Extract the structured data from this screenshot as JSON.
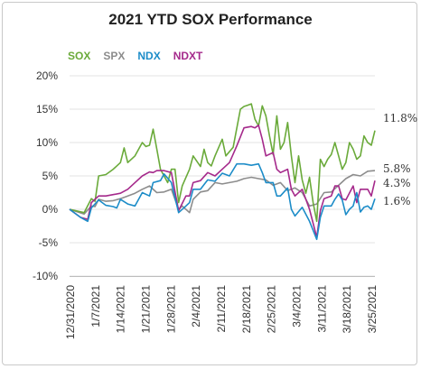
{
  "chart_data": {
    "type": "line",
    "title": "2021 YTD SOX Performance",
    "xlabel": "",
    "ylabel": "",
    "ylim": [
      -10,
      20
    ],
    "yticks": [
      -10,
      -5,
      0,
      5,
      10,
      15,
      20
    ],
    "ytick_labels": [
      "-10%",
      "-5%",
      "0%",
      "5%",
      "10%",
      "15%",
      "20%"
    ],
    "x_tick_labels": [
      "12/31/2020",
      "1/7/2021",
      "1/14/2021",
      "1/21/2021",
      "1/28/2021",
      "2/4/2021",
      "2/11/2021",
      "2/18/2021",
      "2/25/2021",
      "3/4/2021",
      "3/11/2021",
      "3/18/2021",
      "3/25/2021"
    ],
    "x_count": 85,
    "grid": "horizontal",
    "legend_position": "top-left",
    "series": [
      {
        "name": "SOX",
        "color": "#6aaa3a",
        "end_label": "11.8%",
        "points": [
          [
            0,
            0
          ],
          [
            4,
            -0.5
          ],
          [
            6,
            1.6
          ],
          [
            7,
            1.2
          ],
          [
            8,
            5
          ],
          [
            10,
            5.2
          ],
          [
            12,
            6
          ],
          [
            14,
            7
          ],
          [
            15,
            9.2
          ],
          [
            16,
            7
          ],
          [
            18,
            8
          ],
          [
            20,
            10
          ],
          [
            21,
            9.4
          ],
          [
            22,
            9.6
          ],
          [
            23,
            12
          ],
          [
            24,
            9
          ],
          [
            25,
            6
          ],
          [
            27,
            4
          ],
          [
            28,
            6
          ],
          [
            29,
            6
          ],
          [
            30,
            1
          ],
          [
            31,
            3.5
          ],
          [
            33,
            6
          ],
          [
            34,
            8
          ],
          [
            36,
            6.4
          ],
          [
            37,
            9
          ],
          [
            38,
            7
          ],
          [
            39,
            6.5
          ],
          [
            40,
            8
          ],
          [
            42,
            10.5
          ],
          [
            43,
            8
          ],
          [
            45,
            9.3
          ],
          [
            47,
            15
          ],
          [
            48,
            15.4
          ],
          [
            49,
            15.6
          ],
          [
            50,
            15.8
          ],
          [
            51,
            13.5
          ],
          [
            52,
            12.5
          ],
          [
            53,
            15.5
          ],
          [
            54,
            14
          ],
          [
            55,
            11
          ],
          [
            56,
            8.2
          ],
          [
            57,
            14
          ],
          [
            58,
            9
          ],
          [
            59,
            10
          ],
          [
            60,
            13
          ],
          [
            61,
            8
          ],
          [
            62,
            4
          ],
          [
            63,
            8
          ],
          [
            64,
            4.4
          ],
          [
            65,
            2.4
          ],
          [
            66,
            4.8
          ],
          [
            67,
            1
          ],
          [
            68,
            -1.8
          ],
          [
            69,
            7.5
          ],
          [
            70,
            6.4
          ],
          [
            71,
            7.5
          ],
          [
            72,
            8.2
          ],
          [
            73,
            10
          ],
          [
            74,
            8
          ],
          [
            75,
            6
          ],
          [
            76,
            7
          ],
          [
            77,
            10
          ],
          [
            78,
            9
          ],
          [
            79,
            7.5
          ],
          [
            80,
            8
          ],
          [
            81,
            11
          ],
          [
            82,
            10
          ],
          [
            83,
            9.6
          ],
          [
            84,
            11.8
          ]
        ]
      },
      {
        "name": "SPX",
        "color": "#8c8c8c",
        "end_label": "5.8%",
        "points": [
          [
            0,
            0
          ],
          [
            4,
            -0.7
          ],
          [
            6,
            0.5
          ],
          [
            7,
            0.4
          ],
          [
            8,
            1.5
          ],
          [
            10,
            1.2
          ],
          [
            12,
            1.3
          ],
          [
            14,
            1.6
          ],
          [
            16,
            2
          ],
          [
            18,
            2.4
          ],
          [
            20,
            3
          ],
          [
            22,
            3.5
          ],
          [
            24,
            2.5
          ],
          [
            26,
            2.6
          ],
          [
            28,
            3
          ],
          [
            30,
            0
          ],
          [
            31,
            0.5
          ],
          [
            33,
            -0.5
          ],
          [
            34,
            1.5
          ],
          [
            36,
            2.6
          ],
          [
            38,
            2.8
          ],
          [
            40,
            4
          ],
          [
            42,
            3.8
          ],
          [
            44,
            4
          ],
          [
            46,
            4.2
          ],
          [
            48,
            4.6
          ],
          [
            50,
            4.8
          ],
          [
            52,
            4.6
          ],
          [
            54,
            4.4
          ],
          [
            56,
            3.6
          ],
          [
            58,
            4
          ],
          [
            60,
            2.8
          ],
          [
            62,
            3.2
          ],
          [
            64,
            2.5
          ],
          [
            66,
            0.5
          ],
          [
            68,
            0.8
          ],
          [
            70,
            2.5
          ],
          [
            72,
            2.6
          ],
          [
            74,
            3.6
          ],
          [
            76,
            4.6
          ],
          [
            78,
            5.2
          ],
          [
            80,
            5
          ],
          [
            82,
            5.7
          ],
          [
            84,
            5.8
          ]
        ]
      },
      {
        "name": "NDX",
        "color": "#1c8cc8",
        "end_label": "1.6%",
        "points": [
          [
            0,
            0
          ],
          [
            3,
            -1.2
          ],
          [
            5,
            -1.8
          ],
          [
            6,
            0.2
          ],
          [
            8,
            1.4
          ],
          [
            10,
            0.6
          ],
          [
            12,
            0.4
          ],
          [
            13,
            0.2
          ],
          [
            14,
            1.5
          ],
          [
            16,
            0.8
          ],
          [
            18,
            0.5
          ],
          [
            20,
            2.5
          ],
          [
            22,
            2
          ],
          [
            23,
            4
          ],
          [
            25,
            4.3
          ],
          [
            26,
            5.3
          ],
          [
            28,
            4
          ],
          [
            30,
            -0.5
          ],
          [
            32,
            0.5
          ],
          [
            33,
            1
          ],
          [
            34,
            3
          ],
          [
            36,
            3
          ],
          [
            38,
            4.4
          ],
          [
            40,
            4.2
          ],
          [
            42,
            5.4
          ],
          [
            44,
            5
          ],
          [
            46,
            6.8
          ],
          [
            48,
            6.8
          ],
          [
            50,
            6.6
          ],
          [
            52,
            6.8
          ],
          [
            53,
            5.5
          ],
          [
            54,
            4
          ],
          [
            56,
            4
          ],
          [
            57,
            2
          ],
          [
            58,
            2
          ],
          [
            60,
            3.2
          ],
          [
            61,
            0
          ],
          [
            62,
            -1
          ],
          [
            64,
            0.3
          ],
          [
            66,
            -1.8
          ],
          [
            68,
            -4.5
          ],
          [
            69,
            -1.2
          ],
          [
            70,
            0.5
          ],
          [
            72,
            0.5
          ],
          [
            73,
            1.5
          ],
          [
            74,
            2.3
          ],
          [
            75,
            1.4
          ],
          [
            76,
            -0.8
          ],
          [
            77,
            0
          ],
          [
            78,
            0.5
          ],
          [
            79,
            2.5
          ],
          [
            80,
            -0.4
          ],
          [
            81,
            0.3
          ],
          [
            82,
            0.5
          ],
          [
            83,
            0
          ],
          [
            84,
            1.6
          ]
        ]
      },
      {
        "name": "NDXT",
        "color": "#a5298b",
        "end_label": "4.3%",
        "points": [
          [
            0,
            0
          ],
          [
            3,
            -1.2
          ],
          [
            5,
            -1.5
          ],
          [
            6,
            1
          ],
          [
            8,
            2
          ],
          [
            10,
            2
          ],
          [
            12,
            2.2
          ],
          [
            14,
            2.4
          ],
          [
            16,
            3
          ],
          [
            18,
            4
          ],
          [
            20,
            5
          ],
          [
            22,
            5.6
          ],
          [
            23,
            5.5
          ],
          [
            24,
            5.8
          ],
          [
            26,
            5.8
          ],
          [
            28,
            5.5
          ],
          [
            30,
            -0.2
          ],
          [
            32,
            2
          ],
          [
            33,
            2
          ],
          [
            34,
            4
          ],
          [
            36,
            4.3
          ],
          [
            38,
            5.5
          ],
          [
            40,
            5
          ],
          [
            42,
            6
          ],
          [
            44,
            7
          ],
          [
            46,
            9.5
          ],
          [
            48,
            12.2
          ],
          [
            50,
            12.4
          ],
          [
            51,
            12.2
          ],
          [
            52,
            12.6
          ],
          [
            53,
            10.5
          ],
          [
            54,
            8
          ],
          [
            56,
            8.5
          ],
          [
            57,
            6
          ],
          [
            58,
            5.5
          ],
          [
            60,
            6
          ],
          [
            61,
            3
          ],
          [
            62,
            2
          ],
          [
            64,
            3
          ],
          [
            66,
            0
          ],
          [
            68,
            -4.2
          ],
          [
            69,
            -0.2
          ],
          [
            70,
            1.6
          ],
          [
            72,
            2
          ],
          [
            73,
            3.5
          ],
          [
            74,
            3.5
          ],
          [
            75,
            1.6
          ],
          [
            76,
            1.4
          ],
          [
            78,
            3.5
          ],
          [
            79,
            1
          ],
          [
            80,
            3
          ],
          [
            82,
            3
          ],
          [
            83,
            2
          ],
          [
            84,
            4.3
          ]
        ]
      }
    ]
  }
}
